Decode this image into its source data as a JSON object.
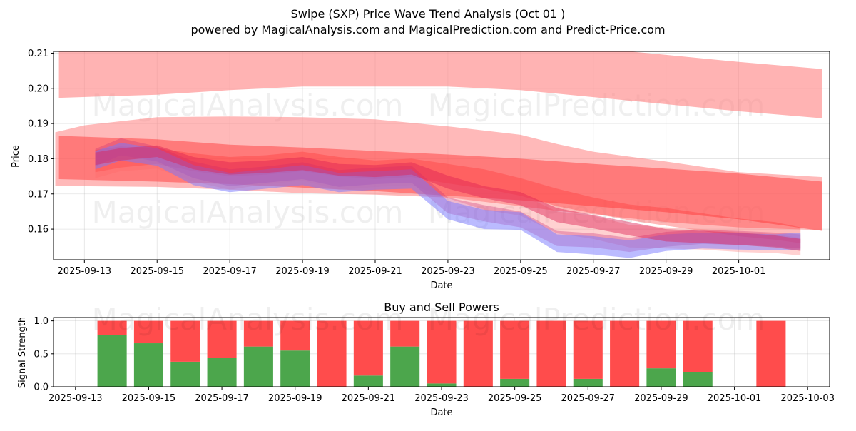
{
  "chart_data": [
    {
      "type": "area",
      "title_line1": "Swipe (SXP) Price Wave Trend Analysis (Oct 01 )",
      "title_line2": "powered by MagicalAnalysis.com and MagicalPrediction.com and Predict-Price.com",
      "xlabel": "Date",
      "ylabel": "Price",
      "ylim": [
        0.1513,
        0.2105
      ],
      "xlim": [
        -0.85,
        20.5
      ],
      "x_ticks": [
        "2025-09-13",
        "2025-09-15",
        "2025-09-17",
        "2025-09-19",
        "2025-09-21",
        "2025-09-23",
        "2025-09-25",
        "2025-09-27",
        "2025-09-29",
        "2025-10-01"
      ],
      "x_tick_pos": [
        0,
        2,
        4,
        6,
        8,
        10,
        12,
        14,
        16,
        18
      ],
      "y_ticks": [
        0.16,
        0.17,
        0.18,
        0.19,
        0.2,
        0.21
      ],
      "y_tick_labels": [
        "0.16",
        "0.17",
        "0.18",
        "0.19",
        "0.20",
        "0.21"
      ],
      "grid": true,
      "watermarks": [
        "MagicalAnalysis.com",
        "MagicalPrediction.com"
      ],
      "bands": [
        {
          "name": "upper-wave-band",
          "color": "#ff8080",
          "opacity": 0.6,
          "x": [
            -0.7,
            2,
            4,
            6,
            8,
            10,
            12,
            14,
            16,
            18,
            20.3
          ],
          "upper": [
            0.213,
            0.213,
            0.2115,
            0.2105,
            0.2105,
            0.2115,
            0.2125,
            0.2115,
            0.2095,
            0.2075,
            0.2055
          ],
          "lower": [
            0.1973,
            0.1982,
            0.1995,
            0.2005,
            0.2005,
            0.2005,
            0.1995,
            0.1975,
            0.1955,
            0.1935,
            0.1915
          ]
        },
        {
          "name": "wide-wave-band",
          "color": "#ff8080",
          "opacity": 0.55,
          "x": [
            -0.8,
            0,
            2,
            4,
            6,
            8,
            10,
            12,
            13,
            14,
            16,
            18,
            20.3
          ],
          "upper": [
            0.1875,
            0.1895,
            0.1918,
            0.192,
            0.1918,
            0.1912,
            0.1892,
            0.1868,
            0.1842,
            0.182,
            0.1792,
            0.1762,
            0.1748
          ],
          "lower": [
            0.1723,
            0.1722,
            0.172,
            0.1712,
            0.1702,
            0.1698,
            0.169,
            0.1665,
            0.1652,
            0.1642,
            0.162,
            0.1605,
            0.1597
          ]
        },
        {
          "name": "core-wave-band",
          "color": "#ff5050",
          "opacity": 0.6,
          "x": [
            -0.7,
            2,
            4,
            6,
            8,
            10,
            12,
            14,
            16,
            18,
            20.3
          ],
          "upper": [
            0.1865,
            0.1855,
            0.184,
            0.1832,
            0.1822,
            0.1812,
            0.18,
            0.1785,
            0.1772,
            0.1758,
            0.1735
          ],
          "lower": [
            0.1742,
            0.1735,
            0.1728,
            0.1718,
            0.1708,
            0.1695,
            0.1682,
            0.1665,
            0.1648,
            0.1628,
            0.1595
          ]
        }
      ],
      "waves": [
        {
          "name": "red-wave-1",
          "color": "#ff3333",
          "opacity": 0.35,
          "x": [
            0.3,
            1,
            2,
            3,
            4,
            5,
            6,
            7,
            8,
            9,
            10,
            11,
            12,
            13,
            14,
            15,
            16,
            17,
            18,
            19,
            19.7
          ],
          "upper": [
            0.1825,
            0.1835,
            0.183,
            0.1815,
            0.1805,
            0.181,
            0.182,
            0.1805,
            0.1795,
            0.18,
            0.1785,
            0.177,
            0.1745,
            0.1715,
            0.169,
            0.167,
            0.166,
            0.1645,
            0.163,
            0.162,
            0.1605
          ],
          "lower": [
            0.1762,
            0.1775,
            0.1785,
            0.1765,
            0.175,
            0.1755,
            0.1765,
            0.175,
            0.1742,
            0.1748,
            0.173,
            0.1715,
            0.1695,
            0.1665,
            0.1645,
            0.1625,
            0.161,
            0.1595,
            0.158,
            0.157,
            0.156
          ]
        },
        {
          "name": "red-wave-2",
          "color": "#ff6666",
          "opacity": 0.3,
          "x": [
            0.3,
            1,
            2,
            3,
            4,
            5,
            6,
            7,
            8,
            9,
            10,
            11,
            12,
            13,
            14,
            15,
            16,
            17,
            18,
            19,
            19.7
          ],
          "upper": [
            0.1805,
            0.181,
            0.1822,
            0.179,
            0.1768,
            0.1785,
            0.1795,
            0.1768,
            0.1778,
            0.1782,
            0.1745,
            0.1712,
            0.17,
            0.165,
            0.1638,
            0.1612,
            0.1605,
            0.16,
            0.1592,
            0.1585,
            0.1575
          ],
          "lower": [
            0.1745,
            0.1765,
            0.1772,
            0.1735,
            0.1712,
            0.1728,
            0.1738,
            0.1712,
            0.172,
            0.1725,
            0.1688,
            0.1655,
            0.1638,
            0.1588,
            0.1572,
            0.1548,
            0.1545,
            0.1542,
            0.1535,
            0.1532,
            0.1525
          ]
        },
        {
          "name": "purple-wave-1",
          "color": "#cc3377",
          "opacity": 0.35,
          "x": [
            0.3,
            1,
            2,
            3,
            4,
            5,
            6,
            7,
            8,
            9,
            10,
            11,
            12,
            13,
            14,
            15,
            16,
            17,
            18,
            19,
            19.7
          ],
          "upper": [
            0.1828,
            0.1858,
            0.1835,
            0.1792,
            0.177,
            0.1778,
            0.179,
            0.1768,
            0.1775,
            0.178,
            0.169,
            0.1668,
            0.165,
            0.1595,
            0.1588,
            0.1575,
            0.1592,
            0.1598,
            0.1595,
            0.159,
            0.1585
          ],
          "lower": [
            0.1778,
            0.181,
            0.1792,
            0.1745,
            0.1722,
            0.1732,
            0.1742,
            0.172,
            0.1728,
            0.1732,
            0.1645,
            0.1622,
            0.1605,
            0.1552,
            0.1548,
            0.1535,
            0.155,
            0.1558,
            0.1555,
            0.155,
            0.1545
          ]
        },
        {
          "name": "blue-wave-1",
          "color": "#7777ff",
          "opacity": 0.5,
          "x": [
            0.3,
            1,
            2,
            3,
            4,
            5,
            6,
            7,
            8,
            9,
            10,
            11,
            12,
            13,
            14,
            15,
            16,
            17,
            18,
            19,
            19.7
          ],
          "upper": [
            0.1822,
            0.1845,
            0.183,
            0.1782,
            0.176,
            0.177,
            0.1782,
            0.176,
            0.1765,
            0.177,
            0.168,
            0.1655,
            0.1648,
            0.1585,
            0.158,
            0.1568,
            0.1585,
            0.159,
            0.1588,
            0.1585,
            0.159
          ],
          "lower": [
            0.177,
            0.1795,
            0.178,
            0.1725,
            0.1705,
            0.1715,
            0.1725,
            0.1705,
            0.1712,
            0.1715,
            0.1628,
            0.16,
            0.1598,
            0.1535,
            0.1528,
            0.1518,
            0.1538,
            0.1545,
            0.1542,
            0.154,
            0.1542
          ]
        },
        {
          "name": "magenta-wave-1",
          "color": "#dd2255",
          "opacity": 0.45,
          "x": [
            0.3,
            1,
            2,
            3,
            4,
            5,
            6,
            7,
            8,
            9,
            10,
            11,
            12,
            13,
            14,
            15,
            16,
            17,
            18,
            19,
            19.7
          ],
          "upper": [
            0.1818,
            0.183,
            0.1838,
            0.1805,
            0.179,
            0.1795,
            0.1805,
            0.1785,
            0.1782,
            0.179,
            0.1752,
            0.1722,
            0.1705,
            0.166,
            0.164,
            0.162,
            0.16,
            0.1595,
            0.159,
            0.1582,
            0.1572
          ],
          "lower": [
            0.1782,
            0.1795,
            0.1805,
            0.177,
            0.1755,
            0.176,
            0.1768,
            0.1752,
            0.1748,
            0.1755,
            0.1715,
            0.1688,
            0.1668,
            0.162,
            0.1602,
            0.1582,
            0.1565,
            0.156,
            0.1555,
            0.1548,
            0.1538
          ]
        }
      ]
    },
    {
      "type": "bar",
      "title": "Buy and Sell Powers",
      "xlabel": "Date",
      "ylabel": "Signal Strength",
      "ylim": [
        0,
        1.05
      ],
      "xlim": [
        -0.6,
        20.6
      ],
      "y_ticks": [
        0.0,
        0.5,
        1.0
      ],
      "y_tick_labels": [
        "0.0",
        "0.5",
        "1.0"
      ],
      "x_ticks": [
        "2025-09-13",
        "2025-09-15",
        "2025-09-17",
        "2025-09-19",
        "2025-09-21",
        "2025-09-23",
        "2025-09-25",
        "2025-09-27",
        "2025-09-29",
        "2025-10-01",
        "2025-10-03"
      ],
      "x_tick_pos": [
        0,
        2,
        4,
        6,
        8,
        10,
        12,
        14,
        16,
        18,
        20
      ],
      "watermarks": [
        "MagicalAnalysis.com",
        "MagicalPrediction.com"
      ],
      "buy_color": "#4ca64c",
      "sell_color": "#ff4c4c",
      "series": [
        {
          "name": "Buy",
          "positions": [
            1,
            2,
            3,
            4,
            5,
            6,
            7,
            8,
            9,
            10,
            11,
            12,
            13,
            14,
            15,
            16,
            17,
            19
          ],
          "values": [
            0.78,
            0.66,
            0.38,
            0.44,
            0.61,
            0.55,
            0.0,
            0.17,
            0.61,
            0.05,
            0.0,
            0.12,
            0.0,
            0.12,
            0.0,
            0.28,
            0.22,
            0.0
          ]
        },
        {
          "name": "Sell",
          "positions": [
            1,
            2,
            3,
            4,
            5,
            6,
            7,
            8,
            9,
            10,
            11,
            12,
            13,
            14,
            15,
            16,
            17,
            19
          ],
          "values": [
            0.22,
            0.34,
            0.62,
            0.56,
            0.39,
            0.45,
            1.0,
            0.83,
            0.39,
            0.95,
            1.0,
            0.88,
            1.0,
            0.88,
            1.0,
            0.72,
            0.78,
            1.0
          ]
        }
      ]
    }
  ]
}
